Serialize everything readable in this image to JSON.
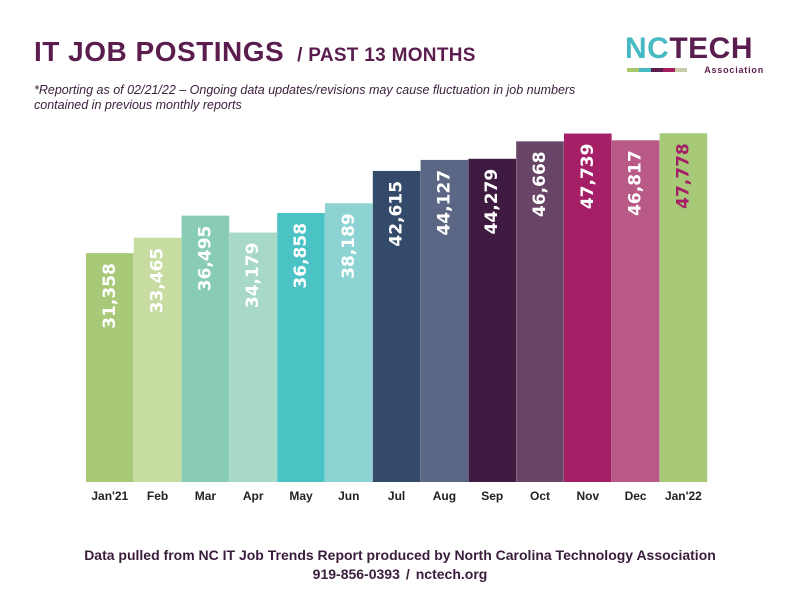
{
  "header": {
    "title": "IT JOB POSTINGS",
    "subtitle": "/ PAST 13 MONTHS",
    "note": "*Reporting as of 02/21/22 – Ongoing data updates/revisions may cause fluctuation in job numbers contained in previous monthly reports"
  },
  "logo": {
    "nc": "NC",
    "tech": "TECH",
    "association": "Association",
    "strip_colors": [
      "#a8c86b",
      "#47b9c2",
      "#5b1d4e",
      "#a51f5e",
      "#c9cba8"
    ]
  },
  "chart_data": {
    "type": "bar",
    "categories": [
      "Jan'21",
      "Feb",
      "Mar",
      "Apr",
      "May",
      "Jun",
      "Jul",
      "Aug",
      "Sep",
      "Oct",
      "Nov",
      "Dec",
      "Jan'22"
    ],
    "values": [
      31358,
      33465,
      36495,
      34179,
      36858,
      38189,
      42615,
      44127,
      44279,
      46668,
      47739,
      46817,
      47778
    ],
    "labels": [
      "31,358",
      "33,465",
      "36,495",
      "34,179",
      "36,858",
      "38,189",
      "42,615",
      "44,127",
      "44,279",
      "46,668",
      "47,739",
      "46,817",
      "47,778"
    ],
    "colors": [
      "#a8c978",
      "#c6dca0",
      "#88ccb6",
      "#a8d8c8",
      "#4bc2c4",
      "#8ed3d4",
      "#334a6b",
      "#5c6785",
      "#3e1a40",
      "#684566",
      "#a51f66",
      "#b85a85",
      "#a8c978"
    ],
    "label_colors": [
      "#ffffff",
      "#ffffff",
      "#ffffff",
      "#ffffff",
      "#ffffff",
      "#ffffff",
      "#ffffff",
      "#ffffff",
      "#ffffff",
      "#ffffff",
      "#ffffff",
      "#ffffff",
      "#a51f66"
    ],
    "ylim": [
      0,
      48500
    ],
    "grid": false,
    "legend": "none"
  },
  "footer": {
    "line1": "Data pulled from NC IT Job Trends Report produced by North Carolina Technology Association",
    "phone": "919-856-0393",
    "separator": "/",
    "url": "nctech.org"
  }
}
